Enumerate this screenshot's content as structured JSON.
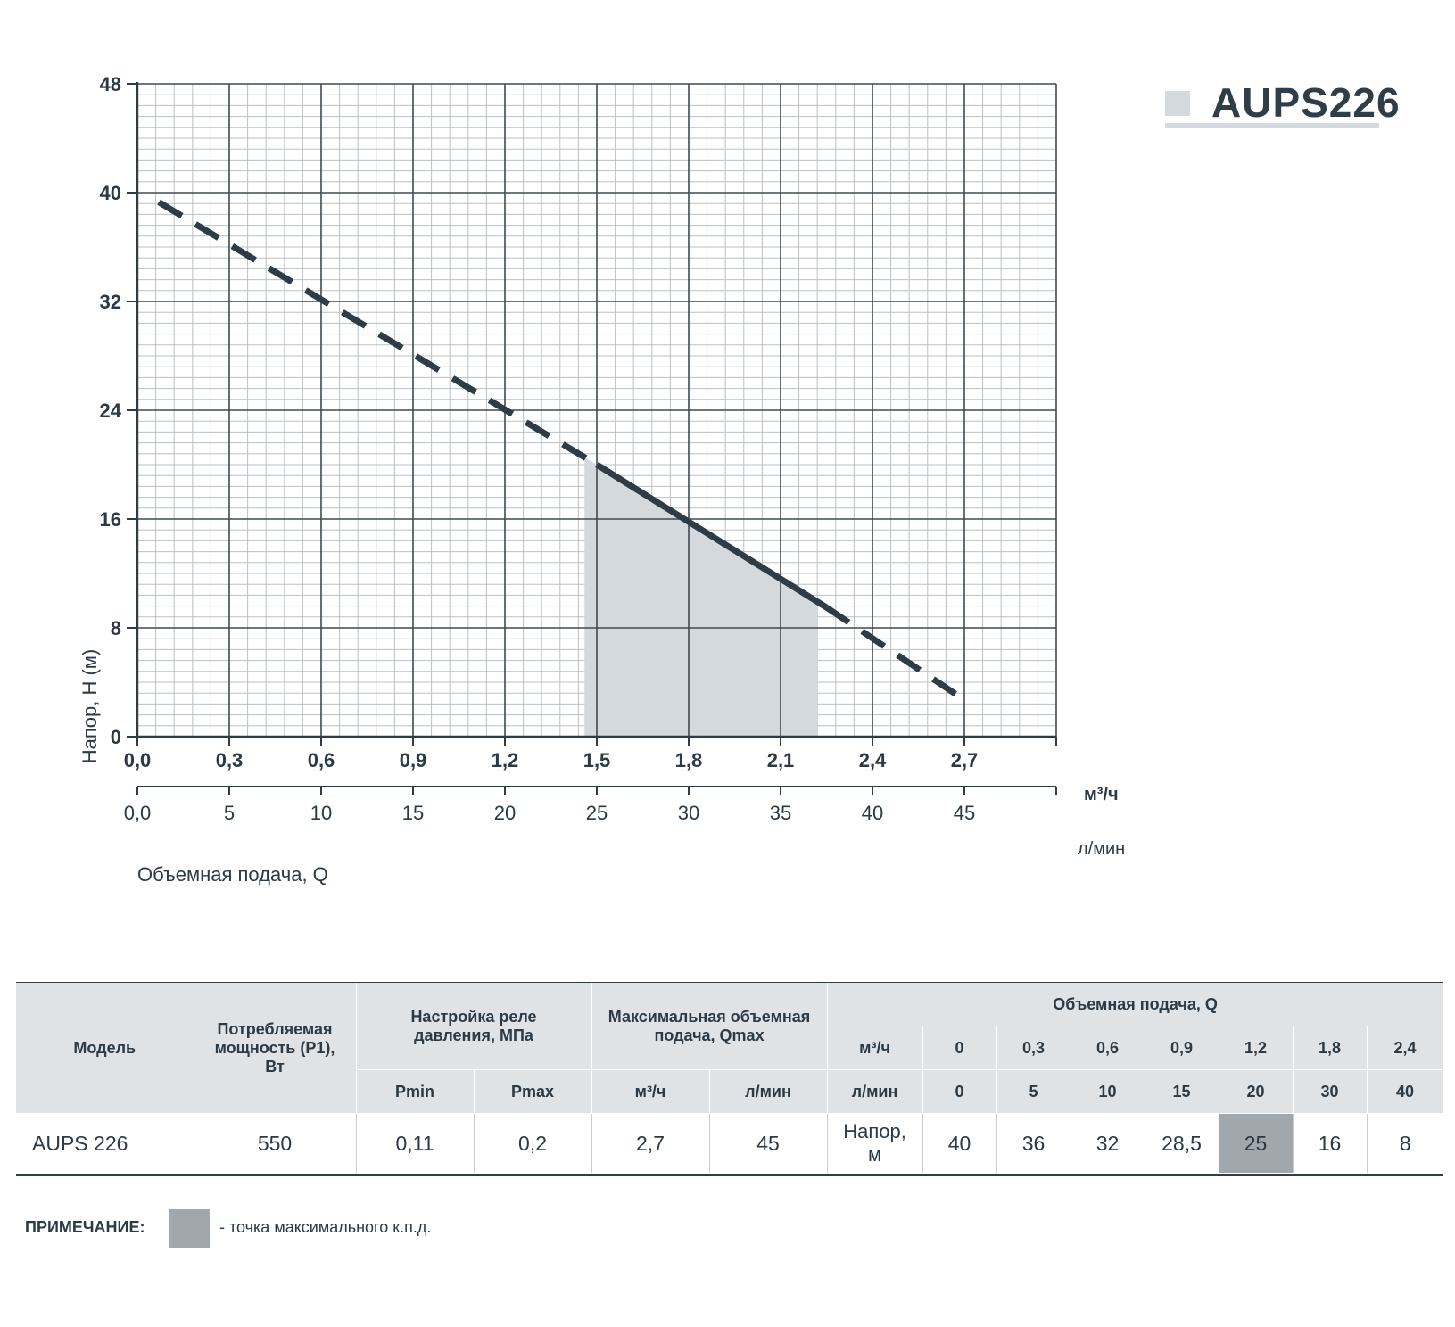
{
  "brand": {
    "model_title": "AUPS226"
  },
  "chart_data": {
    "type": "line",
    "ylabel": "Напор, H (м)",
    "xlabel": "Объемная подача, Q",
    "x_unit_primary": "м³/ч",
    "x_unit_secondary": "л/мин",
    "y_ticks": [
      "0",
      "8",
      "16",
      "24",
      "32",
      "40",
      "48"
    ],
    "x_ticks_m3h": [
      "0,0",
      "0,3",
      "0,6",
      "0,9",
      "1,2",
      "1,5",
      "1,8",
      "2,1",
      "2,4",
      "2,7"
    ],
    "x_ticks_lmin": [
      "0,0",
      "5",
      "10",
      "15",
      "20",
      "25",
      "30",
      "35",
      "40",
      "45"
    ],
    "xlim": [
      0,
      3.0
    ],
    "ylim": [
      0,
      48
    ],
    "grid": true,
    "series": [
      {
        "style": "dashed",
        "x": [
          0.07,
          1.5
        ],
        "y": [
          39.3,
          20.0
        ]
      },
      {
        "style": "solid",
        "x": [
          1.5,
          2.25
        ],
        "y": [
          20.0,
          9.5
        ]
      },
      {
        "style": "dashed",
        "x": [
          2.25,
          2.7
        ],
        "y": [
          9.5,
          2.7
        ]
      }
    ],
    "operating_range": {
      "x": [
        1.46,
        2.22
      ]
    },
    "colors": {
      "curve": "#2e3c45",
      "fill": "#d4d9dd",
      "grid_major": "#3d4a52",
      "grid_minor": "#b9c0c5"
    }
  },
  "table": {
    "headers": {
      "model": "Модель",
      "power": "Потребляемая мощность (P1), Вт",
      "relay": "Настройка реле давления, МПа",
      "pmin": "Pmin",
      "pmax": "Pmax",
      "qmax": "Максимальная объемная подача, Qmax",
      "qmax_m3h": "м³/ч",
      "qmax_lmin": "л/мин",
      "flow": "Объемная подача, Q",
      "flow_m3h_label": "м³/ч",
      "flow_lmin_label": "л/мин",
      "flow_m3h": [
        "0",
        "0,3",
        "0,6",
        "0,9",
        "1,2",
        "1,8",
        "2,4"
      ],
      "flow_lmin": [
        "0",
        "5",
        "10",
        "15",
        "20",
        "30",
        "40"
      ]
    },
    "row": {
      "model": "AUPS 226",
      "power": "550",
      "pmin": "0,11",
      "pmax": "0,2",
      "qmax_m3h": "2,7",
      "qmax_lmin": "45",
      "head_label": "Напор, м",
      "heads": [
        "40",
        "36",
        "32",
        "28,5",
        "25",
        "16",
        "8"
      ],
      "highlight_index": 4
    }
  },
  "note": {
    "label": "ПРИМЕЧАНИЕ:",
    "text": "- точка максимального к.п.д.",
    "swatch_color": "#a0a7ad"
  }
}
